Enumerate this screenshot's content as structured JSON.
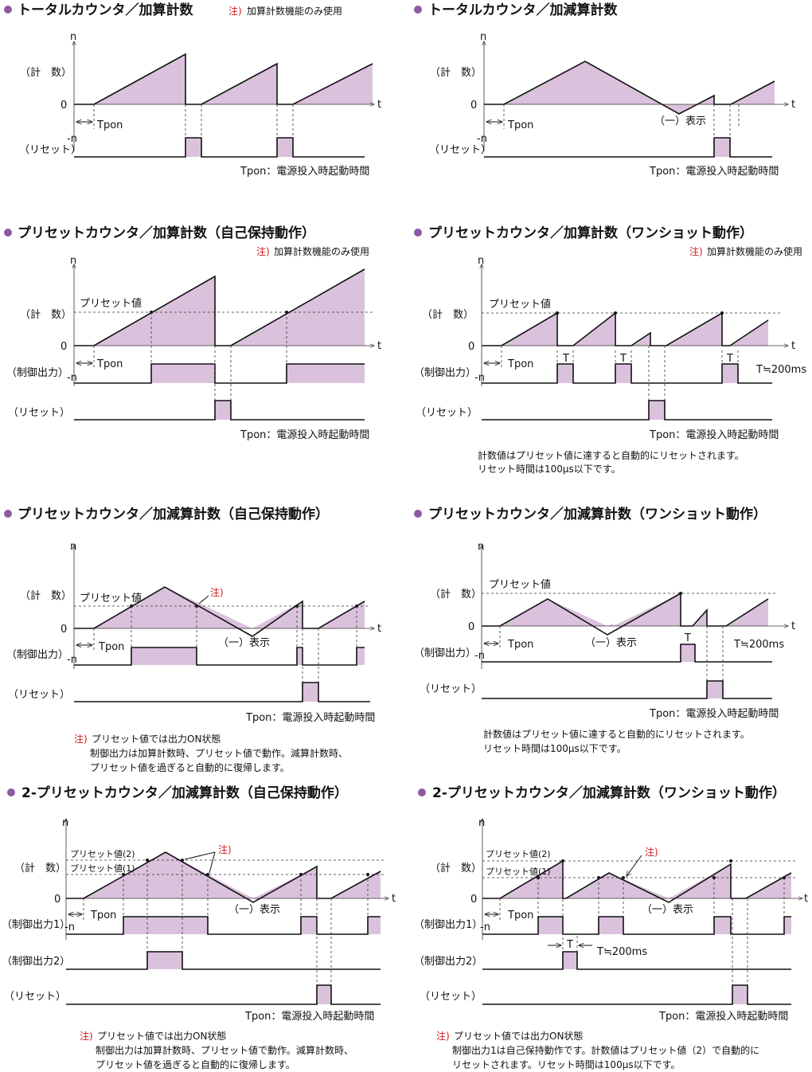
{
  "colors": {
    "accent": "#8e5aa3",
    "fill": "#dac2dc",
    "note": "#d41a1a"
  },
  "labels": {
    "n": "n",
    "neg_n": "-n",
    "zero": "0",
    "t": "t",
    "count": "（計　数）",
    "reset": "（リセット）",
    "control": "（制御出力）",
    "control1": "（制御出力1）",
    "control2": "（制御出力2）",
    "tpon": "Tpon",
    "T": "T",
    "t200": "T≒200ms",
    "neg_display": "（一）表示",
    "preset": "プリセット値",
    "preset1": "プリセット値(1)",
    "preset2": "プリセット値(2)",
    "tpon_desc": "Tpon：電源投入時起動時間",
    "note_mark": "注)",
    "note_add_only": "加算計数機能のみ使用"
  },
  "panels": {
    "p1": {
      "title": "トータルカウンタ／加算計数"
    },
    "p2": {
      "title": "トータルカウンタ／加減算計数"
    },
    "p3": {
      "title": "プリセットカウンタ／加算計数（自己保持動作）"
    },
    "p4": {
      "title": "プリセットカウンタ／加算計数（ワンショット動作）",
      "note1": "計数値はプリセット値に達すると自動的にリセットされます。",
      "note2": "リセット時間は100μs以下です。"
    },
    "p5": {
      "title": "プリセットカウンタ／加減算計数（自己保持動作）",
      "note1": "プリセット値では出力ON状態",
      "note2": "制御出力は加算計数時、プリセット値で動作。減算計数時、",
      "note3": "プリセット値を過ぎると自動的に復帰します。"
    },
    "p6": {
      "title": "プリセットカウンタ／加減算計数（ワンショット動作）",
      "note1": "計数値はプリセット値に達すると自動的にリセットされます。",
      "note2": "リセット時間は100μs以下です。"
    },
    "p7": {
      "title": "2-プリセットカウンタ／加減算計数（自己保持動作）",
      "note1": "プリセット値では出力ON状態",
      "note2": "制御出力は加算計数時、プリセット値で動作。減算計数時、",
      "note3": "プリセット値を過ぎると自動的に復帰します。"
    },
    "p8": {
      "title": "2-プリセットカウンタ／加減算計数（ワンショット動作）",
      "note1": "プリセット値では出力ON状態",
      "note2": "制御出力1は自己保持動作です。計数値はプリセット値（2）で自動的に",
      "note3": "リセットされます。リセット時間は100μs以下です。"
    }
  }
}
